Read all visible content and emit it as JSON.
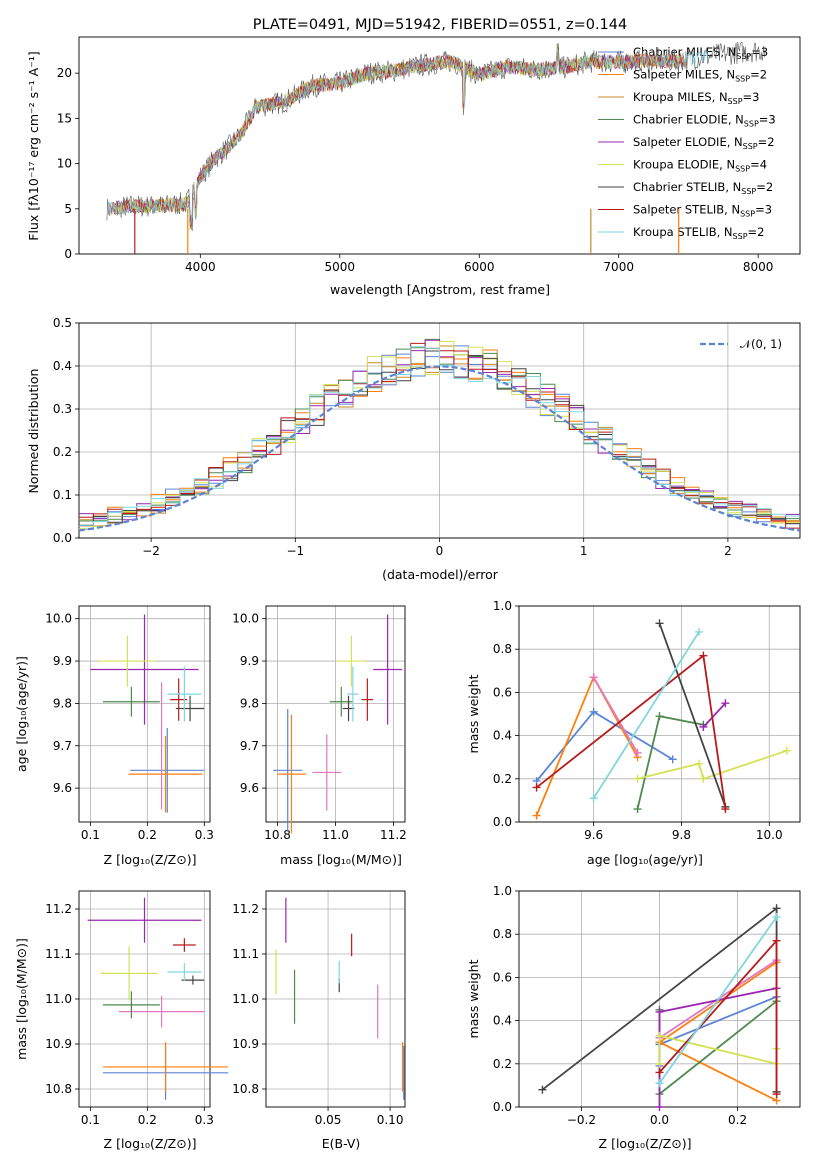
{
  "chart_data": [
    {
      "type": "line",
      "title": "PLATE=0491, MJD=51942, FIBERID=0551, z=0.144",
      "xlabel": "wavelength [Angstrom, rest frame]",
      "ylabel": "Flux [fλ10⁻¹⁷ erg cm⁻² s⁻¹ A⁻¹]",
      "xlim": [
        3130,
        8300
      ],
      "ylim": [
        0,
        24
      ],
      "xticks": [
        "4000",
        "5000",
        "6000",
        "7000",
        "8000"
      ],
      "yticks": [
        "0",
        "5",
        "10",
        "15",
        "20"
      ],
      "legend_position": "top-right",
      "series_colors": [
        "#5b84d6",
        "#ff7f0e",
        "#c98a2b",
        "#4e8a4e",
        "#9b27b0",
        "#d4e157",
        "#444444",
        "#b71c1c",
        "#7fd6e0"
      ],
      "legend": [
        {
          "name": "Chabrier MILES, N",
          "sub": "SSP",
          "suffix": "=3"
        },
        {
          "name": "Salpeter MILES, N",
          "sub": "SSP",
          "suffix": "=2"
        },
        {
          "name": "Kroupa MILES, N",
          "sub": "SSP",
          "suffix": "=3"
        },
        {
          "name": "Chabrier ELODIE, N",
          "sub": "SSP",
          "suffix": "=3"
        },
        {
          "name": "Salpeter ELODIE, N",
          "sub": "SSP",
          "suffix": "=2"
        },
        {
          "name": "Kroupa ELODIE, N",
          "sub": "SSP",
          "suffix": "=4"
        },
        {
          "name": "Chabrier STELIB, N",
          "sub": "SSP",
          "suffix": "=2"
        },
        {
          "name": "Salpeter STELIB, N",
          "sub": "SSP",
          "suffix": "=3"
        },
        {
          "name": "Kroupa STELIB, N",
          "sub": "SSP",
          "suffix": "=2"
        }
      ],
      "continuum": {
        "x": [
          3350,
          3500,
          3700,
          3900,
          4000,
          4100,
          4200,
          4300,
          4400,
          4600,
          4800,
          5000,
          5200,
          5400,
          5600,
          5800,
          6000,
          6200,
          6400,
          6600,
          6800,
          7000,
          7200,
          7400,
          7600,
          7800,
          8050
        ],
        "y": [
          5.0,
          5.3,
          5.3,
          5.6,
          8.5,
          10.5,
          11.8,
          13.4,
          16.3,
          16.8,
          18.6,
          18.9,
          20.0,
          20.3,
          20.9,
          21.3,
          19.8,
          20.7,
          20.4,
          20.6,
          21.3,
          21.2,
          21.4,
          21.3,
          21.8,
          22.2,
          22.6
        ]
      }
    },
    {
      "type": "bar",
      "xlabel": "(data-model)/error",
      "ylabel": "Normed distribution",
      "xlim": [
        -2.5,
        2.5
      ],
      "ylim": [
        0,
        0.5
      ],
      "xticks": [
        "−2",
        "−1",
        "0",
        "1",
        "2"
      ],
      "yticks": [
        "0.0",
        "0.1",
        "0.2",
        "0.3",
        "0.4",
        "0.5"
      ],
      "grid": true,
      "bin_width": 0.1,
      "reference_curve": "standard normal",
      "legend": "𝒩(0, 1)",
      "legend_position": "top-right"
    },
    {
      "type": "scatter",
      "xlabel": "Z [log₁₀(Z/Z⊙)]",
      "ylabel": "age  [log₁₀(age/yr)]",
      "xlim": [
        0.08,
        0.31
      ],
      "ylim": [
        9.52,
        10.03
      ],
      "xticks": [
        "0.1",
        "0.2",
        "0.3"
      ],
      "yticks": [
        "9.6",
        "9.7",
        "9.8",
        "9.9",
        "10.0"
      ],
      "points": [
        {
          "color": "#5b84d6",
          "x": 0.235,
          "xerr": 0.065,
          "y": 9.642,
          "yerr": 0.1
        },
        {
          "color": "#ff7f0e",
          "x": 0.232,
          "xerr": 0.065,
          "y": 9.633,
          "yerr": 0.09
        },
        {
          "color": "#e377c2",
          "x": 0.225,
          "xerr": 0.0,
          "y": 9.7,
          "yerr": 0.15
        },
        {
          "color": "#4e8a4e",
          "x": 0.172,
          "xerr": 0.05,
          "y": 9.804,
          "yerr": 0.035
        },
        {
          "color": "#9b27b0",
          "x": 0.195,
          "xerr": 0.095,
          "y": 9.88,
          "yerr": 0.13
        },
        {
          "color": "#d4e157",
          "x": 0.165,
          "xerr": 0.05,
          "y": 9.9,
          "yerr": 0.06
        },
        {
          "color": "#444444",
          "x": 0.275,
          "xerr": 0.025,
          "y": 9.788,
          "yerr": 0.03
        },
        {
          "color": "#b71c1c",
          "x": 0.255,
          "xerr": 0.015,
          "y": 9.809,
          "yerr": 0.05
        },
        {
          "color": "#7fd6e0",
          "x": 0.265,
          "xerr": 0.03,
          "y": 9.822,
          "yerr": 0.065
        }
      ]
    },
    {
      "type": "scatter",
      "xlabel": "mass [log₁₀(M/M⊙)]",
      "ylabel": "",
      "xlim": [
        10.76,
        11.24
      ],
      "ylim": [
        9.52,
        10.03
      ],
      "xticks": [
        "10.8",
        "11.0",
        "11.2"
      ],
      "yticks": [
        "9.6",
        "9.7",
        "9.8",
        "9.9",
        "10.0"
      ],
      "points": [
        {
          "color": "#5b84d6",
          "x": 10.835,
          "xerr": 0.05,
          "y": 9.642,
          "yerr": 0.145
        },
        {
          "color": "#ff7f0e",
          "x": 10.848,
          "xerr": 0.05,
          "y": 9.633,
          "yerr": 0.14
        },
        {
          "color": "#e377c2",
          "x": 10.97,
          "xerr": 0.05,
          "y": 9.637,
          "yerr": 0.09
        },
        {
          "color": "#4e8a4e",
          "x": 11.02,
          "xerr": 0.04,
          "y": 9.804,
          "yerr": 0.035
        },
        {
          "color": "#9b27b0",
          "x": 11.18,
          "xerr": 0.05,
          "y": 9.88,
          "yerr": 0.13
        },
        {
          "color": "#d4e157",
          "x": 11.055,
          "xerr": 0.05,
          "y": 9.9,
          "yerr": 0.06
        },
        {
          "color": "#444444",
          "x": 11.045,
          "xerr": 0.02,
          "y": 9.788,
          "yerr": 0.03
        },
        {
          "color": "#b71c1c",
          "x": 11.11,
          "xerr": 0.02,
          "y": 9.809,
          "yerr": 0.05
        },
        {
          "color": "#7fd6e0",
          "x": 11.06,
          "xerr": 0.02,
          "y": 9.822,
          "yerr": 0.065
        }
      ]
    },
    {
      "type": "line",
      "xlabel": "age  [log₁₀(age/yr)]",
      "ylabel": "mass weight",
      "xlim": [
        9.43,
        10.07
      ],
      "ylim": [
        0,
        1
      ],
      "xticks": [
        "9.6",
        "9.8",
        "10.0"
      ],
      "yticks": [
        "0.0",
        "0.2",
        "0.4",
        "0.6",
        "0.8",
        "1.0"
      ],
      "grid": true,
      "series": [
        {
          "color": "#5b84d6",
          "x": [
            9.47,
            9.6,
            9.78
          ],
          "y": [
            0.19,
            0.51,
            0.29
          ]
        },
        {
          "color": "#ff7f0e",
          "x": [
            9.47,
            9.6,
            9.7
          ],
          "y": [
            0.03,
            0.67,
            0.3
          ]
        },
        {
          "color": "#e377c2",
          "x": [
            9.6,
            9.7
          ],
          "y": [
            0.67,
            0.32
          ]
        },
        {
          "color": "#4e8a4e",
          "x": [
            9.7,
            9.75,
            9.85
          ],
          "y": [
            0.06,
            0.49,
            0.45
          ]
        },
        {
          "color": "#9b27b0",
          "x": [
            9.85,
            9.9
          ],
          "y": [
            0.44,
            0.55
          ]
        },
        {
          "color": "#d4e157",
          "x": [
            9.7,
            9.84,
            9.85,
            10.04
          ],
          "y": [
            0.2,
            0.27,
            0.2,
            0.33
          ]
        },
        {
          "color": "#444444",
          "x": [
            9.75,
            9.9
          ],
          "y": [
            0.92,
            0.07
          ]
        },
        {
          "color": "#b71c1c",
          "x": [
            9.47,
            9.85,
            9.9
          ],
          "y": [
            0.16,
            0.77,
            0.06
          ]
        },
        {
          "color": "#7fd6e0",
          "x": [
            9.6,
            9.84
          ],
          "y": [
            0.11,
            0.88
          ]
        }
      ]
    },
    {
      "type": "scatter",
      "xlabel": "Z [log₁₀(Z/Z⊙)]",
      "ylabel": "mass [log₁₀(M/M⊙)]",
      "xlim": [
        0.08,
        0.31
      ],
      "ylim": [
        10.76,
        11.24
      ],
      "xticks": [
        "0.1",
        "0.2",
        "0.3"
      ],
      "yticks": [
        "10.8",
        "10.9",
        "11.0",
        "11.1",
        "11.2"
      ],
      "points": [
        {
          "color": "#5b84d6",
          "x": 0.232,
          "xerr": 0.11,
          "y": 10.836,
          "yerr": 0.06
        },
        {
          "color": "#ff7f0e",
          "x": 0.232,
          "xerr": 0.11,
          "y": 10.849,
          "yerr": 0.055
        },
        {
          "color": "#e377c2",
          "x": 0.225,
          "xerr": 0.075,
          "y": 10.972,
          "yerr": 0.035
        },
        {
          "color": "#4e8a4e",
          "x": 0.172,
          "xerr": 0.05,
          "y": 10.987,
          "yerr": 0.03
        },
        {
          "color": "#9b27b0",
          "x": 0.195,
          "xerr": 0.1,
          "y": 11.175,
          "yerr": 0.05
        },
        {
          "color": "#d4e157",
          "x": 0.168,
          "xerr": 0.05,
          "y": 11.057,
          "yerr": 0.06
        },
        {
          "color": "#444444",
          "x": 0.28,
          "xerr": 0.02,
          "y": 11.042,
          "yerr": 0.01
        },
        {
          "color": "#b71c1c",
          "x": 0.265,
          "xerr": 0.02,
          "y": 11.12,
          "yerr": 0.015
        },
        {
          "color": "#7fd6e0",
          "x": 0.265,
          "xerr": 0.03,
          "y": 11.06,
          "yerr": 0.02
        }
      ]
    },
    {
      "type": "scatter",
      "xlabel": "E(B-V)",
      "ylabel": "",
      "xlim": [
        0.0,
        0.112
      ],
      "ylim": [
        10.76,
        11.24
      ],
      "xticks": [
        "0.05",
        "0.10"
      ],
      "yticks": [
        "10.8",
        "10.9",
        "11.0",
        "11.1",
        "11.2"
      ],
      "points": [
        {
          "color": "#5b84d6",
          "x": 0.111,
          "xerr": 0,
          "y": 10.836,
          "yerr": 0.06
        },
        {
          "color": "#ff7f0e",
          "x": 0.11,
          "xerr": 0,
          "y": 10.849,
          "yerr": 0.055
        },
        {
          "color": "#e377c2",
          "x": 0.09,
          "xerr": 0,
          "y": 10.972,
          "yerr": 0.06
        },
        {
          "color": "#4e8a4e",
          "x": 0.023,
          "xerr": 0,
          "y": 11.005,
          "yerr": 0.06
        },
        {
          "color": "#9b27b0",
          "x": 0.016,
          "xerr": 0,
          "y": 11.175,
          "yerr": 0.05
        },
        {
          "color": "#d4e157",
          "x": 0.008,
          "xerr": 0,
          "y": 11.06,
          "yerr": 0.05
        },
        {
          "color": "#444444",
          "x": 0.059,
          "xerr": 0,
          "y": 11.03,
          "yerr": 0.015
        },
        {
          "color": "#b71c1c",
          "x": 0.069,
          "xerr": 0,
          "y": 11.12,
          "yerr": 0.025
        },
        {
          "color": "#7fd6e0",
          "x": 0.059,
          "xerr": 0,
          "y": 11.06,
          "yerr": 0.025
        }
      ]
    },
    {
      "type": "line",
      "xlabel": "Z [log₁₀(Z/Z⊙)]",
      "ylabel": "mass weight",
      "xlim": [
        -0.36,
        0.36
      ],
      "ylim": [
        0,
        1
      ],
      "xticks": [
        "−0.2",
        "0.0",
        "0.2"
      ],
      "yticks": [
        "0.0",
        "0.2",
        "0.4",
        "0.6",
        "0.8",
        "1.0"
      ],
      "grid": true,
      "series": [
        {
          "color": "#5b84d6",
          "x": [
            0.0,
            0.0,
            0.3
          ],
          "y": [
            0.19,
            0.29,
            0.51
          ]
        },
        {
          "color": "#ff7f0e",
          "x": [
            0.3,
            0.0,
            0.3
          ],
          "y": [
            0.03,
            0.3,
            0.67
          ]
        },
        {
          "color": "#e377c2",
          "x": [
            0.0,
            0.3
          ],
          "y": [
            0.32,
            0.68
          ]
        },
        {
          "color": "#4e8a4e",
          "x": [
            0.0,
            0.0,
            0.3
          ],
          "y": [
            0.45,
            0.06,
            0.49
          ]
        },
        {
          "color": "#9b27b0",
          "x": [
            0.0,
            0.0,
            0.3
          ],
          "y": [
            0.0,
            0.44,
            0.55
          ]
        },
        {
          "color": "#d4e157",
          "x": [
            0.0,
            0.0,
            0.3,
            0.3
          ],
          "y": [
            0.2,
            0.33,
            0.2,
            0.27
          ]
        },
        {
          "color": "#444444",
          "x": [
            -0.3,
            0.3,
            0.3
          ],
          "y": [
            0.08,
            0.92,
            0.07
          ]
        },
        {
          "color": "#b71c1c",
          "x": [
            0.0,
            0.3,
            0.3
          ],
          "y": [
            0.16,
            0.77,
            0.06
          ]
        },
        {
          "color": "#7fd6e0",
          "x": [
            0.0,
            0.3
          ],
          "y": [
            0.11,
            0.88
          ]
        }
      ]
    }
  ]
}
